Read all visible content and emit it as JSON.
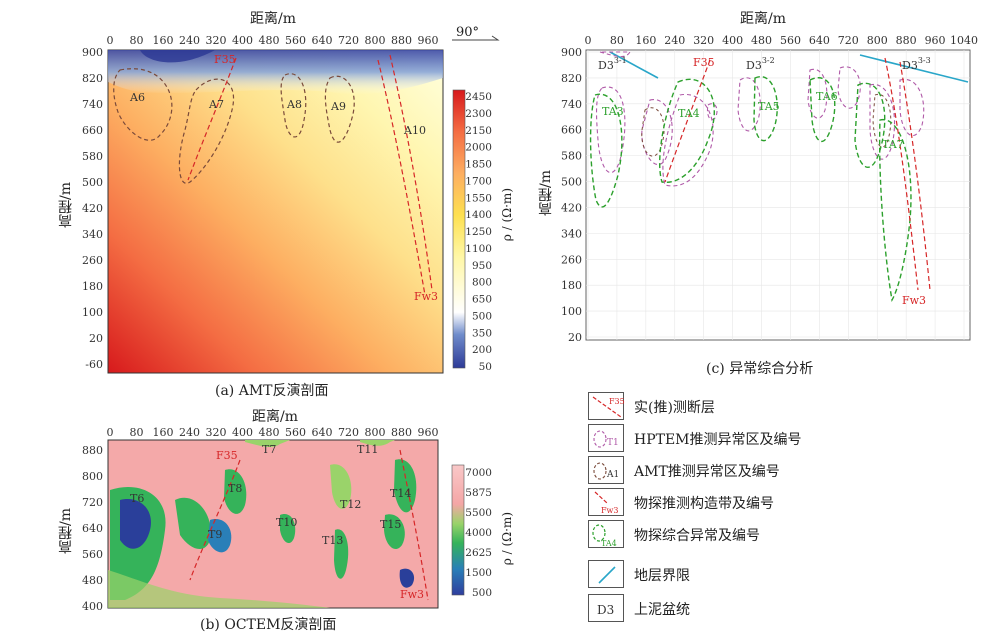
{
  "panel_a": {
    "top_axis_title": "距离/m",
    "y_axis_title": "高程/m",
    "x_ticks": [
      "0",
      "80",
      "160",
      "240",
      "320",
      "400",
      "480",
      "560",
      "640",
      "720",
      "800",
      "880",
      "960"
    ],
    "y_ticks": [
      "900",
      "820",
      "740",
      "660",
      "580",
      "500",
      "420",
      "340",
      "260",
      "180",
      "100",
      "20",
      "-60"
    ],
    "angle_label": "90°",
    "colorbar_ticks": [
      "2450",
      "2300",
      "2150",
      "2000",
      "1850",
      "1700",
      "1550",
      "1400",
      "1250",
      "1100",
      "950",
      "800",
      "650",
      "500",
      "350",
      "200",
      "50"
    ],
    "colorbar_unit": "ρ / (Ω·m)",
    "anomaly_labels": [
      "A6",
      "A7",
      "A8",
      "A9",
      "A10"
    ],
    "fault_labels": [
      "F35",
      "Fw3"
    ],
    "caption": "(a) AMT反演剖面"
  },
  "panel_b": {
    "top_axis_title": "距离/m",
    "y_axis_title": "高程/m",
    "x_ticks": [
      "0",
      "80",
      "160",
      "240",
      "320",
      "400",
      "480",
      "560",
      "640",
      "720",
      "800",
      "880",
      "960"
    ],
    "y_ticks": [
      "880",
      "800",
      "720",
      "640",
      "560",
      "480",
      "400"
    ],
    "colorbar_ticks": [
      "7000",
      "5875",
      "5500",
      "4000",
      "2625",
      "1500",
      "500"
    ],
    "colorbar_unit": "ρ / (Ω·m)",
    "anomaly_labels": [
      "T6",
      "T7",
      "T8",
      "T9",
      "T10",
      "T11",
      "T12",
      "T13",
      "T14",
      "T15"
    ],
    "fault_labels": [
      "F35",
      "Fw3"
    ],
    "caption": "(b) OCTEM反演剖面"
  },
  "panel_c": {
    "top_axis_title": "距离/m",
    "y_axis_title": "高程/m",
    "x_ticks": [
      "0",
      "80",
      "160",
      "240",
      "320",
      "400",
      "480",
      "560",
      "640",
      "720",
      "800",
      "880",
      "960",
      "1040"
    ],
    "y_ticks": [
      "900",
      "820",
      "740",
      "660",
      "580",
      "500",
      "420",
      "340",
      "260",
      "180",
      "100",
      "20"
    ],
    "strata_labels": [
      "D3",
      "D3",
      "D3"
    ],
    "strata_sups": [
      "3-1",
      "3-2",
      "3-3"
    ],
    "anomaly_labels": [
      "TA3",
      "TA4",
      "TA5",
      "TA6",
      "TA7"
    ],
    "fault_labels": [
      "F35",
      "Fw3"
    ],
    "caption": "(c) 异常综合分析"
  },
  "legend": [
    {
      "icon": "fault-line-icon",
      "label": "F35",
      "text": "实(推)测断层"
    },
    {
      "icon": "hptem-anomaly-icon",
      "label": "T1",
      "text": "HPTEM推测异常区及编号"
    },
    {
      "icon": "amt-anomaly-icon",
      "label": "A1",
      "text": "AMT推测异常区及编号"
    },
    {
      "icon": "structure-belt-icon",
      "label": "Fw3",
      "text": "物探推测构造带及编号"
    },
    {
      "icon": "composite-anomaly-icon",
      "label": "TA4",
      "text": "物探综合异常及编号"
    },
    {
      "icon": "stratum-boundary-icon",
      "label": "",
      "text": "地层界限"
    },
    {
      "icon": "stratum-symbol-icon",
      "label": "D3",
      "text": "上泥盆统"
    }
  ],
  "colors": {
    "fault": "#d62728",
    "hptem": "#b05aa8",
    "amt": "#7a4a3a",
    "composite": "#2ca02c",
    "boundary": "#29a6c9",
    "axis": "#333333"
  }
}
